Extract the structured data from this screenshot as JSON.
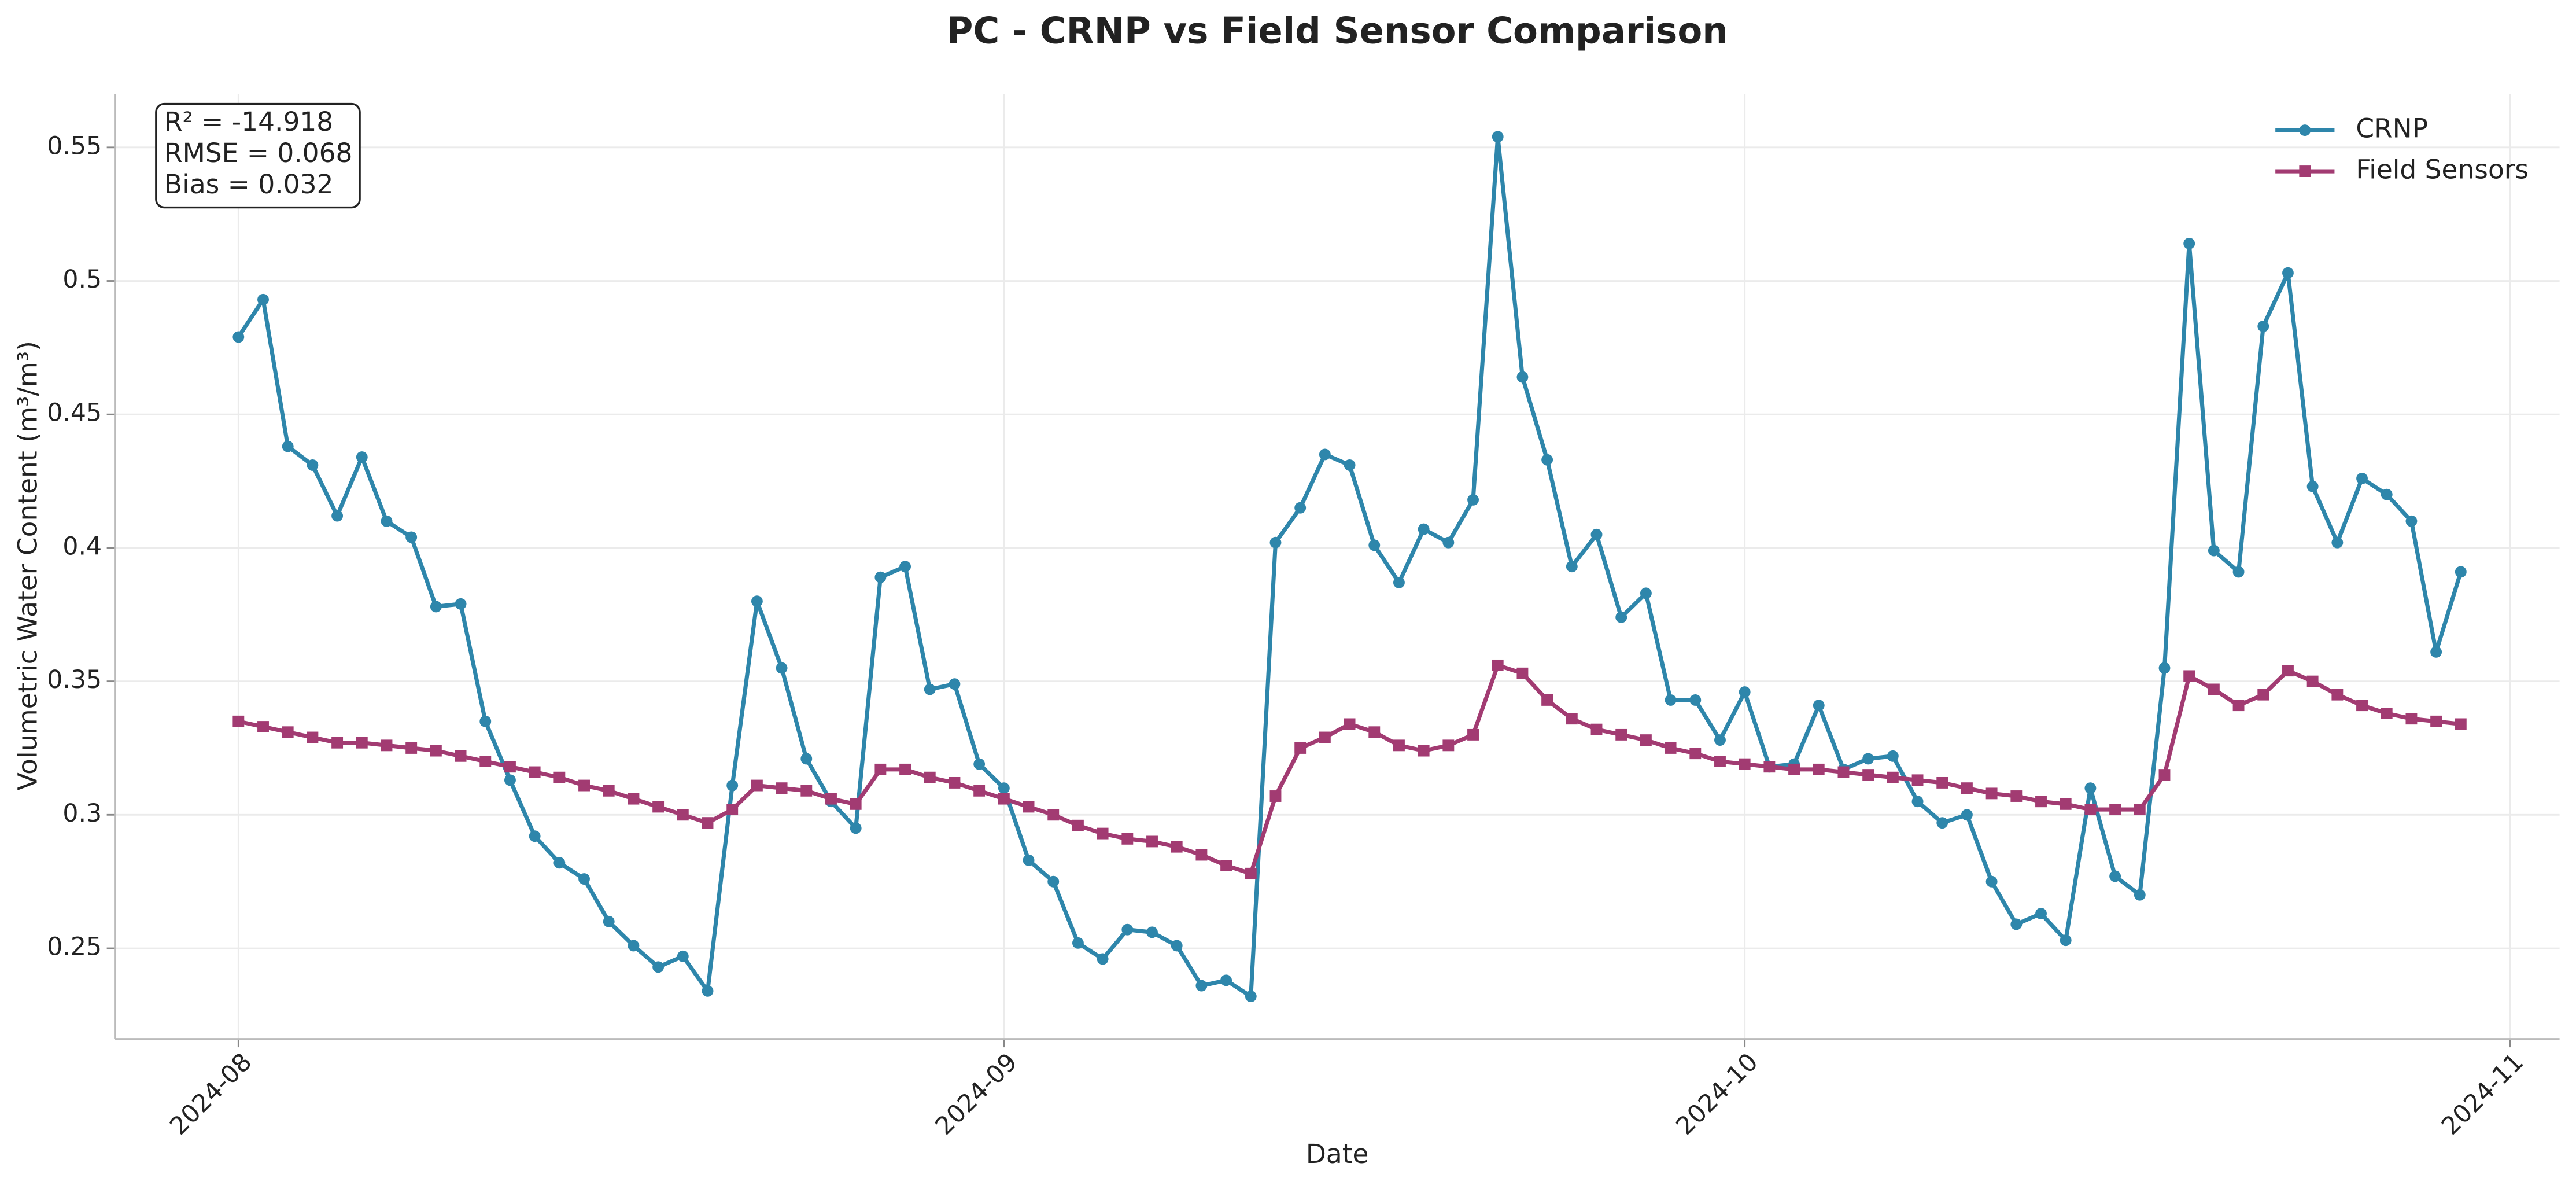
{
  "chart_data": {
    "type": "line",
    "title": "PC - CRNP vs Field Sensor Comparison",
    "xlabel": "Date",
    "ylabel": "Volumetric Water Content (m³/m³)",
    "annotation": [
      "R² = -14.918",
      "RMSE = 0.068",
      "Bias = 0.032"
    ],
    "legend": "upper right",
    "grid": true,
    "x": [
      "2024-08-01",
      "2024-08-02",
      "2024-08-03",
      "2024-08-04",
      "2024-08-05",
      "2024-08-06",
      "2024-08-07",
      "2024-08-08",
      "2024-08-09",
      "2024-08-10",
      "2024-08-11",
      "2024-08-12",
      "2024-08-13",
      "2024-08-14",
      "2024-08-15",
      "2024-08-16",
      "2024-08-17",
      "2024-08-18",
      "2024-08-19",
      "2024-08-20",
      "2024-08-21",
      "2024-08-22",
      "2024-08-23",
      "2024-08-24",
      "2024-08-25",
      "2024-08-26",
      "2024-08-27",
      "2024-08-28",
      "2024-08-29",
      "2024-08-30",
      "2024-08-31",
      "2024-09-01",
      "2024-09-02",
      "2024-09-03",
      "2024-09-04",
      "2024-09-05",
      "2024-09-06",
      "2024-09-07",
      "2024-09-08",
      "2024-09-09",
      "2024-09-10",
      "2024-09-11",
      "2024-09-12",
      "2024-09-13",
      "2024-09-14",
      "2024-09-15",
      "2024-09-16",
      "2024-09-17",
      "2024-09-18",
      "2024-09-19",
      "2024-09-20",
      "2024-09-21",
      "2024-09-22",
      "2024-09-23",
      "2024-09-24",
      "2024-09-25",
      "2024-09-26",
      "2024-09-27",
      "2024-09-28",
      "2024-09-29",
      "2024-09-30",
      "2024-10-01",
      "2024-10-02",
      "2024-10-03",
      "2024-10-04",
      "2024-10-05",
      "2024-10-06",
      "2024-10-07",
      "2024-10-08",
      "2024-10-09",
      "2024-10-10",
      "2024-10-11",
      "2024-10-12",
      "2024-10-13",
      "2024-10-14",
      "2024-10-15",
      "2024-10-16",
      "2024-10-17",
      "2024-10-18",
      "2024-10-19",
      "2024-10-20",
      "2024-10-21",
      "2024-10-22",
      "2024-10-23",
      "2024-10-24",
      "2024-10-25",
      "2024-10-26",
      "2024-10-27",
      "2024-10-28",
      "2024-10-29",
      "2024-10-30"
    ],
    "series": [
      {
        "name": "CRNP",
        "color": "#2e86ab",
        "marker": "circle",
        "values": [
          0.479,
          0.493,
          0.438,
          0.431,
          0.412,
          0.434,
          0.41,
          0.404,
          0.378,
          0.379,
          0.335,
          0.313,
          0.292,
          0.282,
          0.276,
          0.26,
          0.251,
          0.243,
          0.247,
          0.234,
          0.311,
          0.38,
          0.355,
          0.321,
          0.305,
          0.295,
          0.389,
          0.393,
          0.347,
          0.349,
          0.319,
          0.31,
          0.283,
          0.275,
          0.252,
          0.246,
          0.257,
          0.256,
          0.251,
          0.236,
          0.238,
          0.232,
          0.402,
          0.415,
          0.435,
          0.431,
          0.401,
          0.387,
          0.407,
          0.402,
          0.418,
          0.554,
          0.464,
          0.433,
          0.393,
          0.405,
          0.374,
          0.383,
          0.343,
          0.343,
          0.328,
          0.346,
          0.318,
          0.319,
          0.341,
          0.317,
          0.321,
          0.322,
          0.305,
          0.297,
          0.3,
          0.275,
          0.259,
          0.263,
          0.253,
          0.31,
          0.277,
          0.27,
          0.355,
          0.514,
          0.399,
          0.391,
          0.483,
          0.503,
          0.423,
          0.402,
          0.426,
          0.42,
          0.41,
          0.361,
          0.391
        ]
      },
      {
        "name": "Field Sensors",
        "color": "#a23b72",
        "marker": "square",
        "values": [
          0.335,
          0.333,
          0.331,
          0.329,
          0.327,
          0.327,
          0.326,
          0.325,
          0.324,
          0.322,
          0.32,
          0.318,
          0.316,
          0.314,
          0.311,
          0.309,
          0.306,
          0.303,
          0.3,
          0.297,
          0.302,
          0.311,
          0.31,
          0.309,
          0.306,
          0.304,
          0.317,
          0.317,
          0.314,
          0.312,
          0.309,
          0.306,
          0.303,
          0.3,
          0.296,
          0.293,
          0.291,
          0.29,
          0.288,
          0.285,
          0.281,
          0.278,
          0.307,
          0.325,
          0.329,
          0.334,
          0.331,
          0.326,
          0.324,
          0.326,
          0.33,
          0.356,
          0.353,
          0.343,
          0.336,
          0.332,
          0.33,
          0.328,
          0.325,
          0.323,
          0.32,
          0.319,
          0.318,
          0.317,
          0.317,
          0.316,
          0.315,
          0.314,
          0.313,
          0.312,
          0.31,
          0.308,
          0.307,
          0.305,
          0.304,
          0.302,
          0.302,
          0.302,
          0.315,
          0.352,
          0.347,
          0.341,
          0.345,
          0.354,
          0.35,
          0.345,
          0.341,
          0.338,
          0.336,
          0.335,
          0.334
        ]
      }
    ],
    "xlim": [
      "2024-07-27",
      "2024-11-03"
    ],
    "xticks": [
      {
        "value": "2024-08-01",
        "label": "2024-08"
      },
      {
        "value": "2024-09-01",
        "label": "2024-09"
      },
      {
        "value": "2024-10-01",
        "label": "2024-10"
      },
      {
        "value": "2024-11-01",
        "label": "2024-11"
      }
    ],
    "ylim": [
      0.216,
      0.57
    ],
    "yticks": [
      0.25,
      0.3,
      0.35,
      0.4,
      0.45,
      0.5,
      0.55
    ]
  }
}
